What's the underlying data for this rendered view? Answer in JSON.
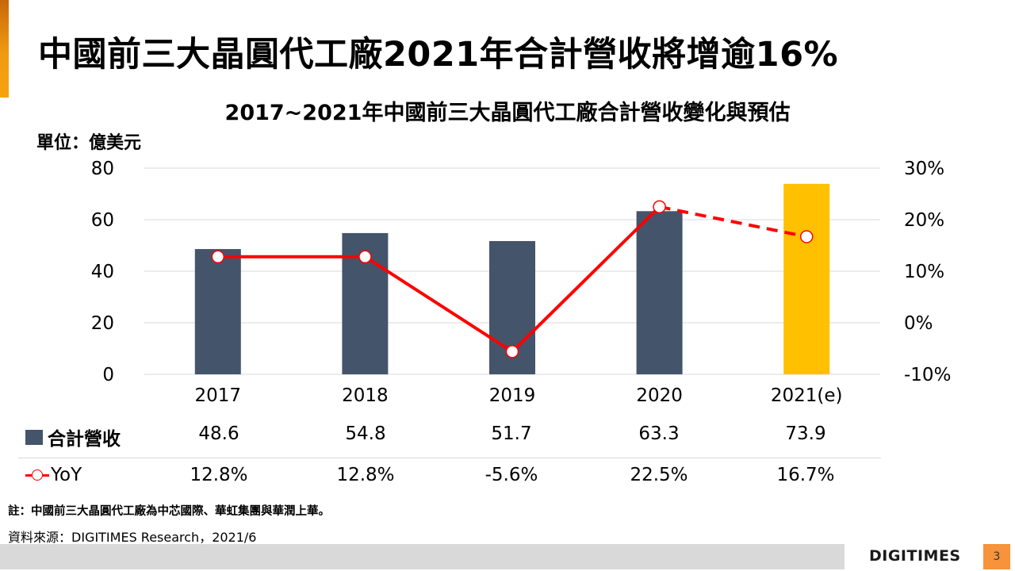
{
  "slide": {
    "title": "中國前三大晶圓代工廠2021年合計營收將增逾16%",
    "accent_color": "#f29a12",
    "page_number": "3",
    "logo_text": "DIGITIMES",
    "note": "註：中國前三大晶圓代工廠為中芯國際、華虹集團與華潤上華。",
    "source": "資料來源：DIGITIMES Research，2021/6"
  },
  "chart_data": {
    "type": "bar+line",
    "title": "2017~2021年中國前三大晶圓代工廠合計營收變化與預估",
    "unit_label": "單位：億美元",
    "categories": [
      "2017",
      "2018",
      "2019",
      "2020",
      "2021(e)"
    ],
    "y_left": {
      "min": 0,
      "max": 80,
      "ticks": [
        0,
        20,
        40,
        60,
        80
      ],
      "tick_labels": [
        "0",
        "20",
        "40",
        "60",
        "80"
      ]
    },
    "y_right": {
      "min": -10,
      "max": 30,
      "ticks": [
        -10,
        0,
        10,
        20,
        30
      ],
      "tick_labels": [
        "-10%",
        "0%",
        "10%",
        "20%",
        "30%"
      ]
    },
    "grid": true,
    "series": [
      {
        "name": "合計營收",
        "type": "bar",
        "axis": "left",
        "values": [
          48.6,
          54.8,
          51.7,
          63.3,
          73.9
        ],
        "value_labels": [
          "48.6",
          "54.8",
          "51.7",
          "63.3",
          "73.9"
        ],
        "colors": [
          "#44546a",
          "#44546a",
          "#44546a",
          "#44546a",
          "#ffc000"
        ]
      },
      {
        "name": "YoY",
        "type": "line",
        "axis": "right",
        "values": [
          12.8,
          12.8,
          -5.6,
          22.5,
          16.7
        ],
        "value_labels": [
          "12.8%",
          "12.8%",
          "-5.6%",
          "22.5%",
          "16.7%"
        ],
        "color": "#ff0000",
        "dashed_from_index": 3
      }
    ],
    "legend_placement": "bottom-table"
  }
}
